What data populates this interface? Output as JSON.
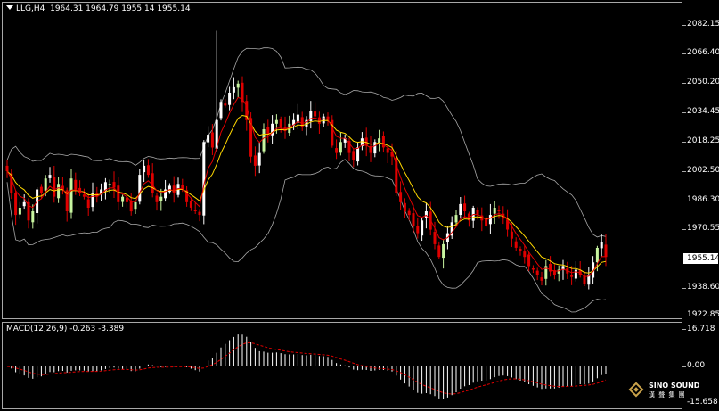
{
  "chart_header": {
    "symbol_tf": "LLG,H4",
    "ohlc": "1964.31 1964.79 1955.14 1955.14"
  },
  "price_axis": {
    "labels": [
      "2082.15",
      "2066.40",
      "2050.20",
      "2034.45",
      "2018.25",
      "2002.50",
      "1986.30",
      "1970.55",
      "1938.60",
      "1922.85"
    ],
    "current_price": "1955.14"
  },
  "macd": {
    "title": "MACD(12,26,9) -0.263 -3.389",
    "axis_labels": [
      "16.718",
      "0.00",
      "-15.658"
    ]
  },
  "watermark": {
    "brand_en": "SINO SOUND",
    "brand_cn": "漢 聲 集 團"
  },
  "colors": {
    "bull": "#ffffff",
    "bull_alt": "#c8f5a0",
    "bear": "#e00000",
    "ma_fast": "#e00000",
    "ma_slow": "#ffd800",
    "bands": "#a8a8a8",
    "macd_hist": "#ffffff",
    "macd_signal": "#e00000",
    "background": "#000000"
  },
  "chart_data": {
    "type": "candlestick",
    "y_range": [
      1922.85,
      2082.15
    ],
    "closes": [
      2002,
      1990,
      1978,
      1982,
      1985,
      1975,
      1980,
      1992,
      1990,
      1998,
      2000,
      1988,
      1995,
      1992,
      1980,
      1998,
      1992,
      1990,
      1988,
      1982,
      1990,
      1988,
      1992,
      1996,
      1995,
      1993,
      1985,
      1988,
      1985,
      1980,
      1985,
      2000,
      2005,
      2000,
      1990,
      1985,
      1988,
      1992,
      1994,
      1990,
      1995,
      1992,
      1985,
      1982,
      1980,
      1978,
      2018,
      2022,
      2015,
      2030,
      2040,
      2038,
      2045,
      2048,
      2050,
      2040,
      2030,
      2010,
      2005,
      2012,
      2025,
      2022,
      2028,
      2030,
      2026,
      2024,
      2028,
      2030,
      2033,
      2026,
      2030,
      2035,
      2032,
      2028,
      2032,
      2030,
      2016,
      2012,
      2018,
      2020,
      2012,
      2008,
      2015,
      2020,
      2016,
      2012,
      2018,
      2020,
      2015,
      2012,
      2010,
      1990,
      1985,
      1980,
      1978,
      1972,
      1968,
      1975,
      1980,
      1970,
      1962,
      1955,
      1962,
      1968,
      1974,
      1978,
      1984,
      1980,
      1975,
      1982,
      1978,
      1975,
      1972,
      1978,
      1982,
      1980,
      1976,
      1970,
      1965,
      1960,
      1958,
      1955,
      1950,
      1948,
      1945,
      1942,
      1950,
      1947,
      1945,
      1948,
      1950,
      1946,
      1944,
      1948,
      1945,
      1940,
      1945,
      1952,
      1960,
      1963,
      1955
    ]
  }
}
